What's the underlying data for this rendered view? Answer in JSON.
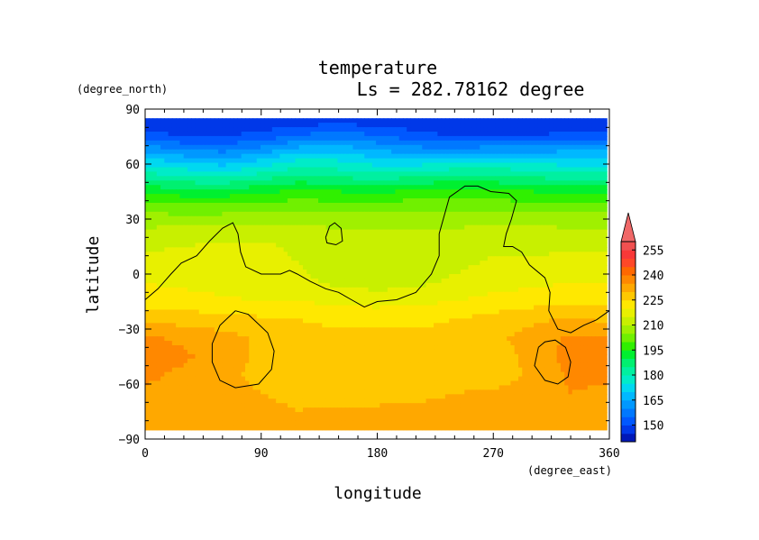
{
  "chart_data": {
    "type": "heatmap",
    "title": "temperature",
    "subtitle": "Ls = 282.78162 degree",
    "xlabel": "longitude",
    "ylabel": "latitude",
    "x_units": "(degree_east)",
    "y_units": "(degree_north)",
    "xlim": [
      0,
      360
    ],
    "ylim": [
      -90,
      90
    ],
    "x_ticks": [
      0,
      90,
      180,
      270,
      360
    ],
    "y_ticks": [
      90,
      60,
      30,
      0,
      -30,
      -60,
      -90
    ],
    "colorbar": {
      "levels": [
        140,
        145,
        150,
        155,
        160,
        165,
        170,
        175,
        180,
        185,
        190,
        195,
        200,
        205,
        210,
        215,
        220,
        225,
        230,
        235,
        240,
        245,
        250,
        255,
        260
      ],
      "tick_labels": [
        150,
        165,
        180,
        195,
        210,
        225,
        240,
        255
      ],
      "extend": "max",
      "colors": [
        "#0018b8",
        "#0038e8",
        "#0058ff",
        "#0078ff",
        "#0098ff",
        "#00b8ff",
        "#00d8f0",
        "#00ecc8",
        "#00f0a0",
        "#00f070",
        "#00f030",
        "#30f000",
        "#70f000",
        "#a0f000",
        "#c8f000",
        "#e8f000",
        "#ffe800",
        "#ffc800",
        "#ffa800",
        "#ff8800",
        "#ff6800",
        "#ff4828",
        "#f83838",
        "#f05050"
      ],
      "over_color": "#f06868"
    },
    "latitudes": [
      85,
      75,
      65,
      55,
      45,
      35,
      25,
      15,
      5,
      -5,
      -15,
      -25,
      -35,
      -45,
      -55,
      -65,
      -75,
      -85
    ],
    "longitudes": [
      0,
      30,
      60,
      90,
      120,
      150,
      180,
      210,
      240,
      270,
      300,
      330,
      360
    ],
    "values": [
      [
        145,
        145,
        145,
        145,
        146,
        146,
        146,
        145,
        145,
        145,
        145,
        145,
        145
      ],
      [
        152,
        150,
        150,
        152,
        156,
        158,
        156,
        152,
        150,
        150,
        150,
        152,
        152
      ],
      [
        168,
        164,
        162,
        166,
        172,
        172,
        168,
        166,
        166,
        168,
        168,
        168,
        168
      ],
      [
        180,
        178,
        176,
        180,
        184,
        182,
        180,
        182,
        184,
        184,
        182,
        180,
        180
      ],
      [
        194,
        192,
        192,
        194,
        196,
        195,
        194,
        196,
        197,
        196,
        195,
        194,
        194
      ],
      [
        204,
        203,
        203,
        204,
        205,
        204,
        204,
        205,
        205,
        205,
        204,
        204,
        204
      ],
      [
        210,
        211,
        212,
        212,
        211,
        210,
        210,
        210,
        210,
        211,
        211,
        210,
        210
      ],
      [
        214,
        215,
        216,
        216,
        214,
        212,
        212,
        212,
        212,
        214,
        214,
        214,
        214
      ],
      [
        217,
        218,
        218,
        217,
        215,
        213,
        213,
        213,
        214,
        216,
        216,
        217,
        217
      ],
      [
        220,
        219,
        218,
        217,
        216,
        214,
        213,
        214,
        216,
        218,
        219,
        220,
        220
      ],
      [
        223,
        222,
        221,
        220,
        220,
        219,
        218,
        219,
        220,
        222,
        223,
        224,
        223
      ],
      [
        229,
        228,
        227,
        226,
        225,
        224,
        224,
        224,
        225,
        227,
        229,
        231,
        229
      ],
      [
        236,
        234,
        232,
        229,
        227,
        226,
        226,
        226,
        227,
        229,
        232,
        236,
        236
      ],
      [
        237,
        236,
        232,
        229,
        226,
        226,
        226,
        226,
        226,
        227,
        232,
        237,
        237
      ],
      [
        236,
        234,
        231,
        229,
        226,
        226,
        226,
        226,
        226,
        227,
        231,
        236,
        236
      ],
      [
        234,
        234,
        231,
        230,
        229,
        228,
        228,
        229,
        230,
        231,
        232,
        235,
        234
      ],
      [
        232,
        234,
        232,
        231,
        230,
        231,
        231,
        231,
        231,
        231,
        232,
        233,
        232
      ],
      [
        230,
        230,
        230,
        230,
        230,
        230,
        230,
        230,
        230,
        230,
        230,
        230,
        230
      ]
    ],
    "contours": [
      [
        [
          0,
          -14
        ],
        [
          10,
          -8
        ],
        [
          20,
          0
        ],
        [
          28,
          6
        ],
        [
          40,
          10
        ],
        [
          50,
          18
        ],
        [
          60,
          25
        ],
        [
          68,
          28
        ],
        [
          72,
          22
        ],
        [
          74,
          12
        ],
        [
          78,
          4
        ],
        [
          90,
          0
        ],
        [
          105,
          0
        ],
        [
          112,
          2
        ],
        [
          118,
          0
        ],
        [
          128,
          -4
        ],
        [
          140,
          -8
        ],
        [
          150,
          -10
        ],
        [
          160,
          -14
        ],
        [
          170,
          -18
        ],
        [
          180,
          -15
        ],
        [
          195,
          -14
        ],
        [
          210,
          -10
        ],
        [
          222,
          0
        ],
        [
          228,
          10
        ],
        [
          228,
          22
        ],
        [
          232,
          32
        ],
        [
          236,
          42
        ],
        [
          248,
          48
        ],
        [
          258,
          48
        ],
        [
          268,
          45
        ],
        [
          282,
          44
        ],
        [
          288,
          40
        ],
        [
          284,
          30
        ],
        [
          280,
          22
        ],
        [
          278,
          15
        ],
        [
          285,
          15
        ],
        [
          292,
          12
        ],
        [
          298,
          5
        ],
        [
          310,
          -2
        ],
        [
          314,
          -10
        ],
        [
          313,
          -20
        ],
        [
          320,
          -30
        ],
        [
          330,
          -32
        ],
        [
          340,
          -28
        ],
        [
          350,
          -25
        ],
        [
          360,
          -20
        ]
      ],
      [
        [
          140,
          20
        ],
        [
          143,
          26
        ],
        [
          147,
          28
        ],
        [
          152,
          25
        ],
        [
          153,
          18
        ],
        [
          148,
          16
        ],
        [
          141,
          17
        ],
        [
          140,
          20
        ]
      ],
      [
        [
          70,
          -20
        ],
        [
          80,
          -22
        ],
        [
          95,
          -32
        ],
        [
          100,
          -42
        ],
        [
          98,
          -52
        ],
        [
          88,
          -60
        ],
        [
          70,
          -62
        ],
        [
          58,
          -58
        ],
        [
          52,
          -48
        ],
        [
          52,
          -38
        ],
        [
          58,
          -28
        ],
        [
          70,
          -20
        ]
      ],
      [
        [
          305,
          -40
        ],
        [
          310,
          -37
        ],
        [
          318,
          -36
        ],
        [
          326,
          -40
        ],
        [
          330,
          -48
        ],
        [
          328,
          -56
        ],
        [
          320,
          -60
        ],
        [
          310,
          -58
        ],
        [
          302,
          -50
        ],
        [
          305,
          -40
        ]
      ]
    ]
  }
}
